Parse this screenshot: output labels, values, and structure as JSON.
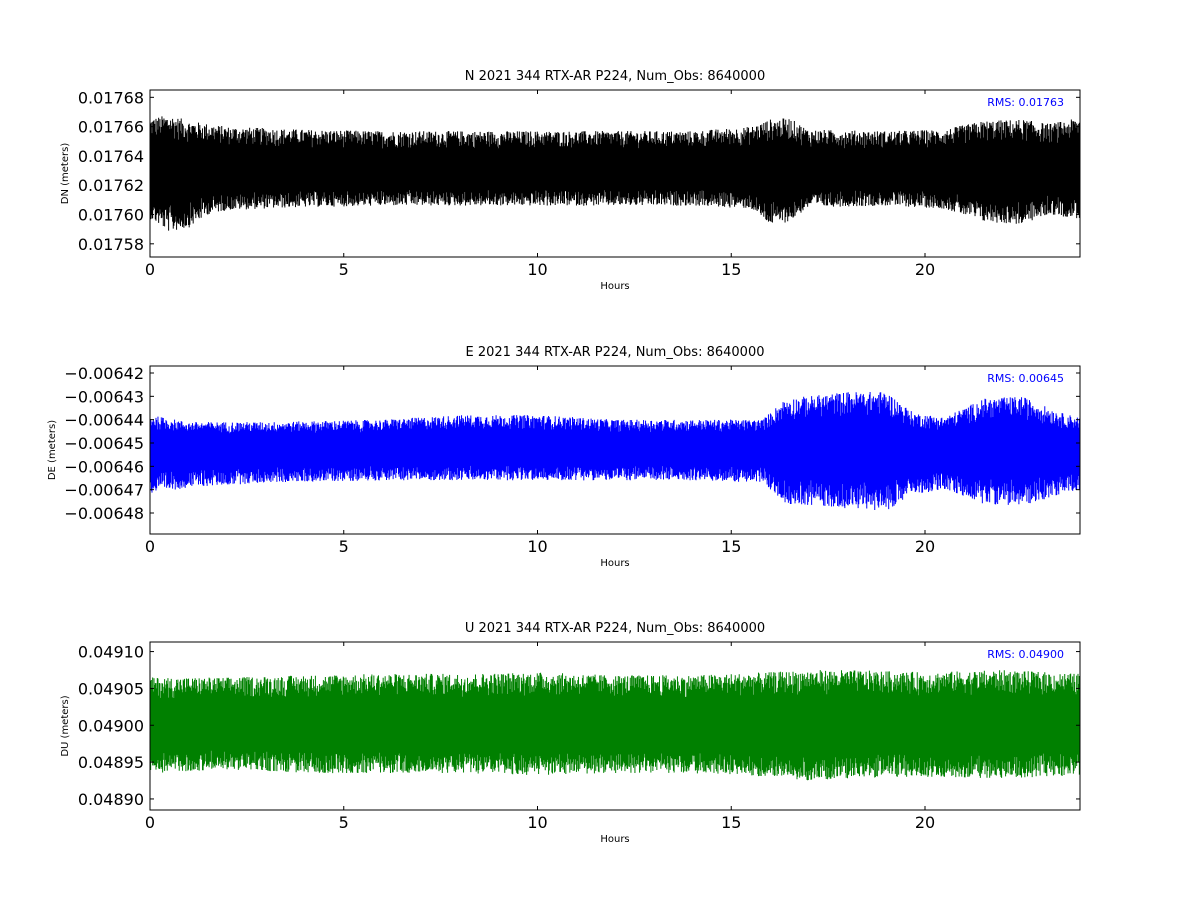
{
  "chart_data": [
    {
      "type": "line",
      "title": "N 2021 344 RTX-AR  P224, Num_Obs: 8640000",
      "xlabel": "Hours",
      "ylabel": "DN (meters)",
      "color": "#000000",
      "xlim": [
        0,
        24
      ],
      "ylim": [
        0.017571,
        0.017685
      ],
      "xticks": [
        0,
        5,
        10,
        15,
        20
      ],
      "yticks": [
        {
          "value": 0.01758,
          "label": "0.01758"
        },
        {
          "value": 0.0176,
          "label": "0.01760"
        },
        {
          "value": 0.01762,
          "label": "0.01762"
        },
        {
          "value": 0.01764,
          "label": "0.01764"
        },
        {
          "value": 0.01766,
          "label": "0.01766"
        },
        {
          "value": 0.01768,
          "label": "0.01768"
        }
      ],
      "rms_label": "RMS:  0.01763",
      "num_obs": 8640000,
      "series": [
        {
          "mean": 0.01763,
          "envelope": [
            {
              "x": 0,
              "low": 0.017597,
              "high": 0.017666
            },
            {
              "x": 0.5,
              "low": 0.017588,
              "high": 0.017668
            },
            {
              "x": 1,
              "low": 0.017591,
              "high": 0.017664
            },
            {
              "x": 1.5,
              "low": 0.0176,
              "high": 0.017662
            },
            {
              "x": 2,
              "low": 0.017603,
              "high": 0.01766
            },
            {
              "x": 3,
              "low": 0.017604,
              "high": 0.017659
            },
            {
              "x": 4,
              "low": 0.017605,
              "high": 0.017658
            },
            {
              "x": 6,
              "low": 0.017606,
              "high": 0.017657
            },
            {
              "x": 8,
              "low": 0.017606,
              "high": 0.017657
            },
            {
              "x": 10,
              "low": 0.017606,
              "high": 0.017657
            },
            {
              "x": 12,
              "low": 0.017606,
              "high": 0.017657
            },
            {
              "x": 14,
              "low": 0.017606,
              "high": 0.017657
            },
            {
              "x": 15.5,
              "low": 0.017604,
              "high": 0.01766
            },
            {
              "x": 16,
              "low": 0.017593,
              "high": 0.017665
            },
            {
              "x": 16.5,
              "low": 0.017595,
              "high": 0.017666
            },
            {
              "x": 17,
              "low": 0.017605,
              "high": 0.017658
            },
            {
              "x": 19,
              "low": 0.017606,
              "high": 0.017657
            },
            {
              "x": 20.5,
              "low": 0.017604,
              "high": 0.017658
            },
            {
              "x": 21.5,
              "low": 0.017595,
              "high": 0.017664
            },
            {
              "x": 22.5,
              "low": 0.017593,
              "high": 0.017665
            },
            {
              "x": 23.2,
              "low": 0.0176,
              "high": 0.017662
            },
            {
              "x": 24,
              "low": 0.017597,
              "high": 0.017666
            }
          ]
        }
      ]
    },
    {
      "type": "line",
      "title": "E 2021 344 RTX-AR  P224, Num_Obs: 8640000",
      "xlabel": "Hours",
      "ylabel": "DE (meters)",
      "color": "#0000ff",
      "xlim": [
        0,
        24
      ],
      "ylim": [
        -0.006489,
        -0.006417
      ],
      "xticks": [
        0,
        5,
        10,
        15,
        20
      ],
      "yticks": [
        {
          "value": -0.00642,
          "label": "−0.00642"
        },
        {
          "value": -0.00643,
          "label": "−0.00643"
        },
        {
          "value": -0.00644,
          "label": "−0.00644"
        },
        {
          "value": -0.00645,
          "label": "−0.00645"
        },
        {
          "value": -0.00646,
          "label": "−0.00646"
        },
        {
          "value": -0.00647,
          "label": "−0.00647"
        },
        {
          "value": -0.00648,
          "label": "−0.00648"
        }
      ],
      "rms_label": "RMS:  0.00645",
      "num_obs": 8640000,
      "series": [
        {
          "mean": -0.006452,
          "envelope": [
            {
              "x": 0,
              "low": -0.006472,
              "high": -0.006438
            },
            {
              "x": 1,
              "low": -0.006469,
              "high": -0.006441
            },
            {
              "x": 3,
              "low": -0.006467,
              "high": -0.006441
            },
            {
              "x": 6,
              "low": -0.006466,
              "high": -0.00644
            },
            {
              "x": 8,
              "low": -0.006466,
              "high": -0.006438
            },
            {
              "x": 10,
              "low": -0.006466,
              "high": -0.006438
            },
            {
              "x": 12,
              "low": -0.006466,
              "high": -0.00644
            },
            {
              "x": 14,
              "low": -0.006466,
              "high": -0.00644
            },
            {
              "x": 15.8,
              "low": -0.006467,
              "high": -0.00644
            },
            {
              "x": 16.4,
              "low": -0.006476,
              "high": -0.006431
            },
            {
              "x": 18,
              "low": -0.006478,
              "high": -0.006428
            },
            {
              "x": 19,
              "low": -0.006479,
              "high": -0.006428
            },
            {
              "x": 19.7,
              "low": -0.006472,
              "high": -0.006437
            },
            {
              "x": 20.5,
              "low": -0.00647,
              "high": -0.006439
            },
            {
              "x": 21.5,
              "low": -0.006476,
              "high": -0.006431
            },
            {
              "x": 22.5,
              "low": -0.006477,
              "high": -0.00643
            },
            {
              "x": 23.5,
              "low": -0.006472,
              "high": -0.006437
            },
            {
              "x": 24,
              "low": -0.00647,
              "high": -0.006439
            }
          ]
        }
      ]
    },
    {
      "type": "line",
      "title": "U 2021 344 RTX-AR  P224, Num_Obs: 8640000",
      "xlabel": "Hours",
      "ylabel": "DU (meters)",
      "color": "#008000",
      "xlim": [
        0,
        24
      ],
      "ylim": [
        0.048885,
        0.049113
      ],
      "xticks": [
        0,
        5,
        10,
        15,
        20
      ],
      "yticks": [
        {
          "value": 0.0489,
          "label": "0.04890"
        },
        {
          "value": 0.04895,
          "label": "0.04895"
        },
        {
          "value": 0.049,
          "label": "0.04900"
        },
        {
          "value": 0.04905,
          "label": "0.04905"
        },
        {
          "value": 0.0491,
          "label": "0.04910"
        }
      ],
      "rms_label": "RMS:  0.04900",
      "num_obs": 8640000,
      "series": [
        {
          "mean": 0.049,
          "envelope": [
            {
              "x": 0,
              "low": 0.048935,
              "high": 0.049065
            },
            {
              "x": 2,
              "low": 0.04894,
              "high": 0.049065
            },
            {
              "x": 4,
              "low": 0.048935,
              "high": 0.049068
            },
            {
              "x": 6,
              "low": 0.048935,
              "high": 0.04907
            },
            {
              "x": 8,
              "low": 0.048935,
              "high": 0.04907
            },
            {
              "x": 10,
              "low": 0.048932,
              "high": 0.049072
            },
            {
              "x": 12,
              "low": 0.048935,
              "high": 0.049068
            },
            {
              "x": 14,
              "low": 0.048935,
              "high": 0.049068
            },
            {
              "x": 16,
              "low": 0.04893,
              "high": 0.049072
            },
            {
              "x": 17,
              "low": 0.048925,
              "high": 0.049075
            },
            {
              "x": 18,
              "low": 0.048928,
              "high": 0.049075
            },
            {
              "x": 20,
              "low": 0.04893,
              "high": 0.049072
            },
            {
              "x": 22,
              "low": 0.048928,
              "high": 0.049075
            },
            {
              "x": 24,
              "low": 0.048932,
              "high": 0.04907
            }
          ]
        }
      ]
    }
  ]
}
